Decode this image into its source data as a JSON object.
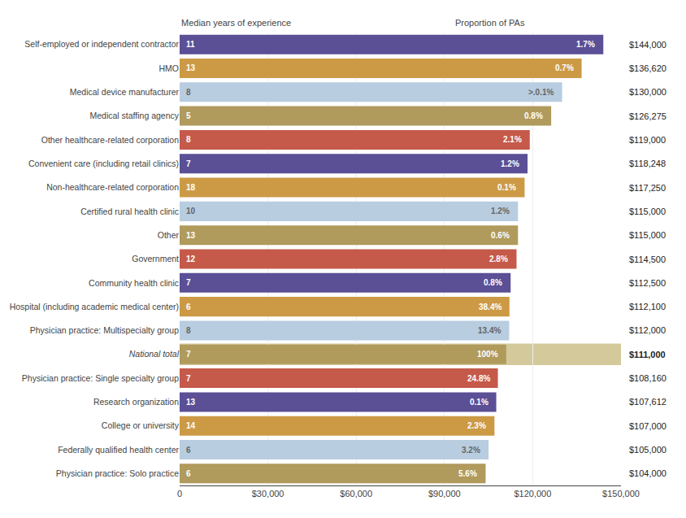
{
  "chart_data": {
    "type": "bar",
    "orientation": "horizontal",
    "categories": [
      "Self-employed or independent contractor",
      "HMO",
      "Medical device manufacturer",
      "Medical staffing agency",
      "Other healthcare-related corporation",
      "Convenient care (including retail clinics)",
      "Non-healthcare-related corporation",
      "Certified rural health clinic",
      "Other",
      "Government",
      "Community health clinic",
      "Hospital (including academic medical center)",
      "Physician practice: Multispecialty group",
      "National total",
      "Physician practice: Single specialty group",
      "Research organization",
      "College or university",
      "Federally qualified health center",
      "Physician practice: Solo practice"
    ],
    "values": [
      144000,
      136620,
      130000,
      126275,
      119000,
      118248,
      117250,
      115000,
      115000,
      114500,
      112500,
      112100,
      112000,
      111000,
      108160,
      107612,
      107000,
      105000,
      104000
    ],
    "value_labels": [
      "$144,000",
      "$136,620",
      "$130,000",
      "$126,275",
      "$119,000",
      "$118,248",
      "$117,250",
      "$115,000",
      "$115,000",
      "$114,500",
      "$112,500",
      "$112,100",
      "$112,000",
      "$111,000",
      "$108,160",
      "$107,612",
      "$107,000",
      "$105,000",
      "$104,000"
    ],
    "data_labels": true,
    "median_years": [
      11,
      13,
      8,
      5,
      8,
      7,
      18,
      10,
      13,
      12,
      7,
      6,
      8,
      7,
      7,
      13,
      14,
      6,
      6
    ],
    "proportion_labels": [
      "1.7%",
      "0.7%",
      ">.0.1%",
      "0.8%",
      "2.1%",
      "1.2%",
      "0.1%",
      "1.2%",
      "0.6%",
      "2.8%",
      "0.8%",
      "38.4%",
      "13.4%",
      "100%",
      "24.8%",
      "0.1%",
      "2.3%",
      "3.2%",
      "5.6%"
    ],
    "annotations": [
      "Median years of experience",
      "Proportion of PAs"
    ],
    "colors": [
      "#5b4f96",
      "#cc9a45",
      "#b8cde0",
      "#b09a5c",
      "#c55a4a",
      "#5b4f96",
      "#cc9a45",
      "#b8cde0",
      "#b09a5c",
      "#c55a4a",
      "#5b4f96",
      "#cc9a45",
      "#b8cde0",
      "#b09a5c",
      "#c55a4a",
      "#5b4f96",
      "#cc9a45",
      "#b8cde0",
      "#b09a5c"
    ],
    "highlight": {
      "category": "National total",
      "color": "#d4c99a"
    },
    "xlim": [
      0,
      150000
    ],
    "xticks": [
      0,
      {
        "value": 30000,
        "label": "$30,000"
      },
      {
        "value": 60000,
        "label": "$60,000"
      },
      {
        "value": 90000,
        "label": "$90,000"
      },
      {
        "value": 120000,
        "label": "$120,000"
      },
      {
        "value": 150000,
        "label": "$150,000"
      }
    ],
    "grid": true
  }
}
